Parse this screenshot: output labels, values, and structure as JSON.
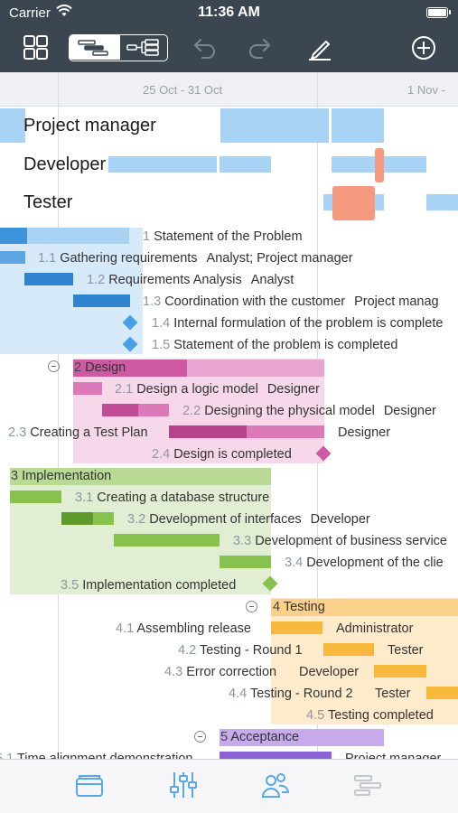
{
  "status_bar": {
    "carrier": "Carrier",
    "time": "11:36 AM"
  },
  "toolbar": {
    "icons": [
      "grid-view-icon",
      "gantt-view-icon",
      "resource-view-icon",
      "undo-icon",
      "redo-icon",
      "edit-icon",
      "add-icon"
    ]
  },
  "timeline": {
    "week1": "25 Oct - 31 Oct",
    "week2": "1 Nov -"
  },
  "resources": [
    "Project manager",
    "Developer",
    "Tester"
  ],
  "tasks": {
    "t1": {
      "num": "1",
      "name": "Statement of the Problem",
      "res": ""
    },
    "t1_1": {
      "num": "1.1",
      "name": "Gathering requirements",
      "res": "Analyst; Project manager"
    },
    "t1_2": {
      "num": "1.2",
      "name": "Requirements Analysis",
      "res": "Analyst"
    },
    "t1_3": {
      "num": "1.3",
      "name": "Coordination with the customer",
      "res": "Project manag"
    },
    "t1_4": {
      "num": "1.4",
      "name": "Internal formulation of the problem is complete",
      "res": ""
    },
    "t1_5": {
      "num": "1.5",
      "name": "Statement of the problem is completed",
      "res": ""
    },
    "t2": {
      "num": "2",
      "name": "Design",
      "res": ""
    },
    "t2_1": {
      "num": "2.1",
      "name": "Design a logic model",
      "res": "Designer"
    },
    "t2_2": {
      "num": "2.2",
      "name": "Designing the physical model",
      "res": "Designer"
    },
    "t2_3": {
      "num": "2.3",
      "name": "Creating a Test Plan",
      "res": "Designer"
    },
    "t2_4": {
      "num": "2.4",
      "name": "Design is completed",
      "res": ""
    },
    "t3": {
      "num": "3",
      "name": "Implementation",
      "res": ""
    },
    "t3_1": {
      "num": "3.1",
      "name": "Creating a database structure",
      "res": ""
    },
    "t3_2": {
      "num": "3.2",
      "name": "Development of interfaces",
      "res": "Developer"
    },
    "t3_3": {
      "num": "3.3",
      "name": "Development of business service",
      "res": ""
    },
    "t3_4": {
      "num": "3.4",
      "name": "Development of the clie",
      "res": ""
    },
    "t3_5": {
      "num": "3.5",
      "name": "Implementation completed",
      "res": ""
    },
    "t4": {
      "num": "4",
      "name": "Testing",
      "res": ""
    },
    "t4_1": {
      "num": "4.1",
      "name": "Assembling release",
      "res": "Administrator"
    },
    "t4_2": {
      "num": "4.2",
      "name": "Testing - Round 1",
      "res": "Tester"
    },
    "t4_3": {
      "num": "4.3",
      "name": "Error correction",
      "res": "Developer"
    },
    "t4_4": {
      "num": "4.4",
      "name": "Testing - Round 2",
      "res": "Tester"
    },
    "t4_5": {
      "num": "4.5",
      "name": "Testing completed",
      "res": ""
    },
    "t5": {
      "num": "5",
      "name": "Acceptance",
      "res": ""
    },
    "t5_1": {
      "num": "5.1",
      "name": "Time alignment demonstration",
      "res": "Project manager"
    }
  },
  "tabbar": {
    "icons": [
      "projects-tab-icon",
      "settings-sliders-tab-icon",
      "resources-tab-icon",
      "gantt-tab-icon"
    ]
  },
  "colors": {
    "chrome": "#3c4650",
    "blue": "#a9d3f5",
    "pink": "#e8a5cf",
    "green": "#b9da95",
    "orange": "#fbd08a",
    "purple": "#c6aaeb"
  }
}
